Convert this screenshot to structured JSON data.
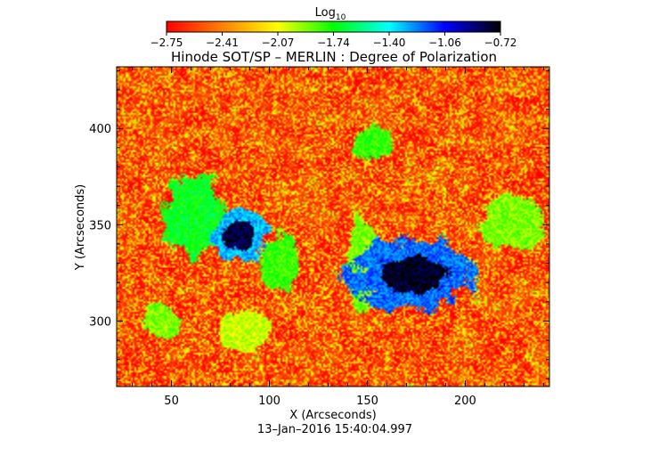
{
  "chart_data": {
    "type": "heatmap",
    "title": "Hinode SOT/SP – MERLIN : Degree of Polarization",
    "xlabel": "X (Arcseconds)",
    "ylabel": "Y (Arcseconds)",
    "xlim": [
      22,
      243
    ],
    "ylim": [
      266,
      432
    ],
    "xticks": [
      50,
      100,
      150,
      200
    ],
    "yticks": [
      300,
      350,
      400
    ],
    "colorbar": {
      "label_base": "Log",
      "label_sub": "10",
      "range": [
        -2.75,
        -0.72
      ],
      "ticks": [
        "−2.75",
        "−2.41",
        "−2.07",
        "−1.74",
        "−1.40",
        "−1.06",
        "−0.72"
      ],
      "colors": [
        "#ff0000",
        "#ff8000",
        "#ffff00",
        "#00ff00",
        "#00ffff",
        "#0000ff",
        "#000000"
      ]
    },
    "features": [
      {
        "kind": "umbra",
        "x": 85,
        "y": 344,
        "rx": 8,
        "ry": 7,
        "level": -0.8
      },
      {
        "kind": "umbra",
        "x": 172,
        "y": 324,
        "rx": 18,
        "ry": 10,
        "level": -0.75
      },
      {
        "kind": "penumbra",
        "x": 172,
        "y": 324,
        "rx": 31,
        "ry": 19,
        "level": -1.2
      },
      {
        "kind": "penumbra",
        "x": 85,
        "y": 344,
        "rx": 15,
        "ry": 13,
        "level": -1.3
      },
      {
        "kind": "plage",
        "x": 62,
        "y": 355,
        "rx": 16,
        "ry": 22,
        "level": -1.7
      },
      {
        "kind": "plage",
        "x": 106,
        "y": 330,
        "rx": 10,
        "ry": 16,
        "level": -1.8
      },
      {
        "kind": "plage",
        "x": 148,
        "y": 330,
        "rx": 8,
        "ry": 24,
        "level": -1.9
      },
      {
        "kind": "plage",
        "x": 152,
        "y": 392,
        "rx": 10,
        "ry": 9,
        "level": -1.8
      },
      {
        "kind": "plage",
        "x": 225,
        "y": 352,
        "rx": 16,
        "ry": 14,
        "level": -1.9
      },
      {
        "kind": "plage",
        "x": 45,
        "y": 300,
        "rx": 10,
        "ry": 9,
        "level": -1.9
      },
      {
        "kind": "plage",
        "x": 88,
        "y": 295,
        "rx": 14,
        "ry": 10,
        "level": -2.0
      }
    ]
  },
  "footer": {
    "timestamp": "13–Jan–2016 15:40:04.997"
  }
}
